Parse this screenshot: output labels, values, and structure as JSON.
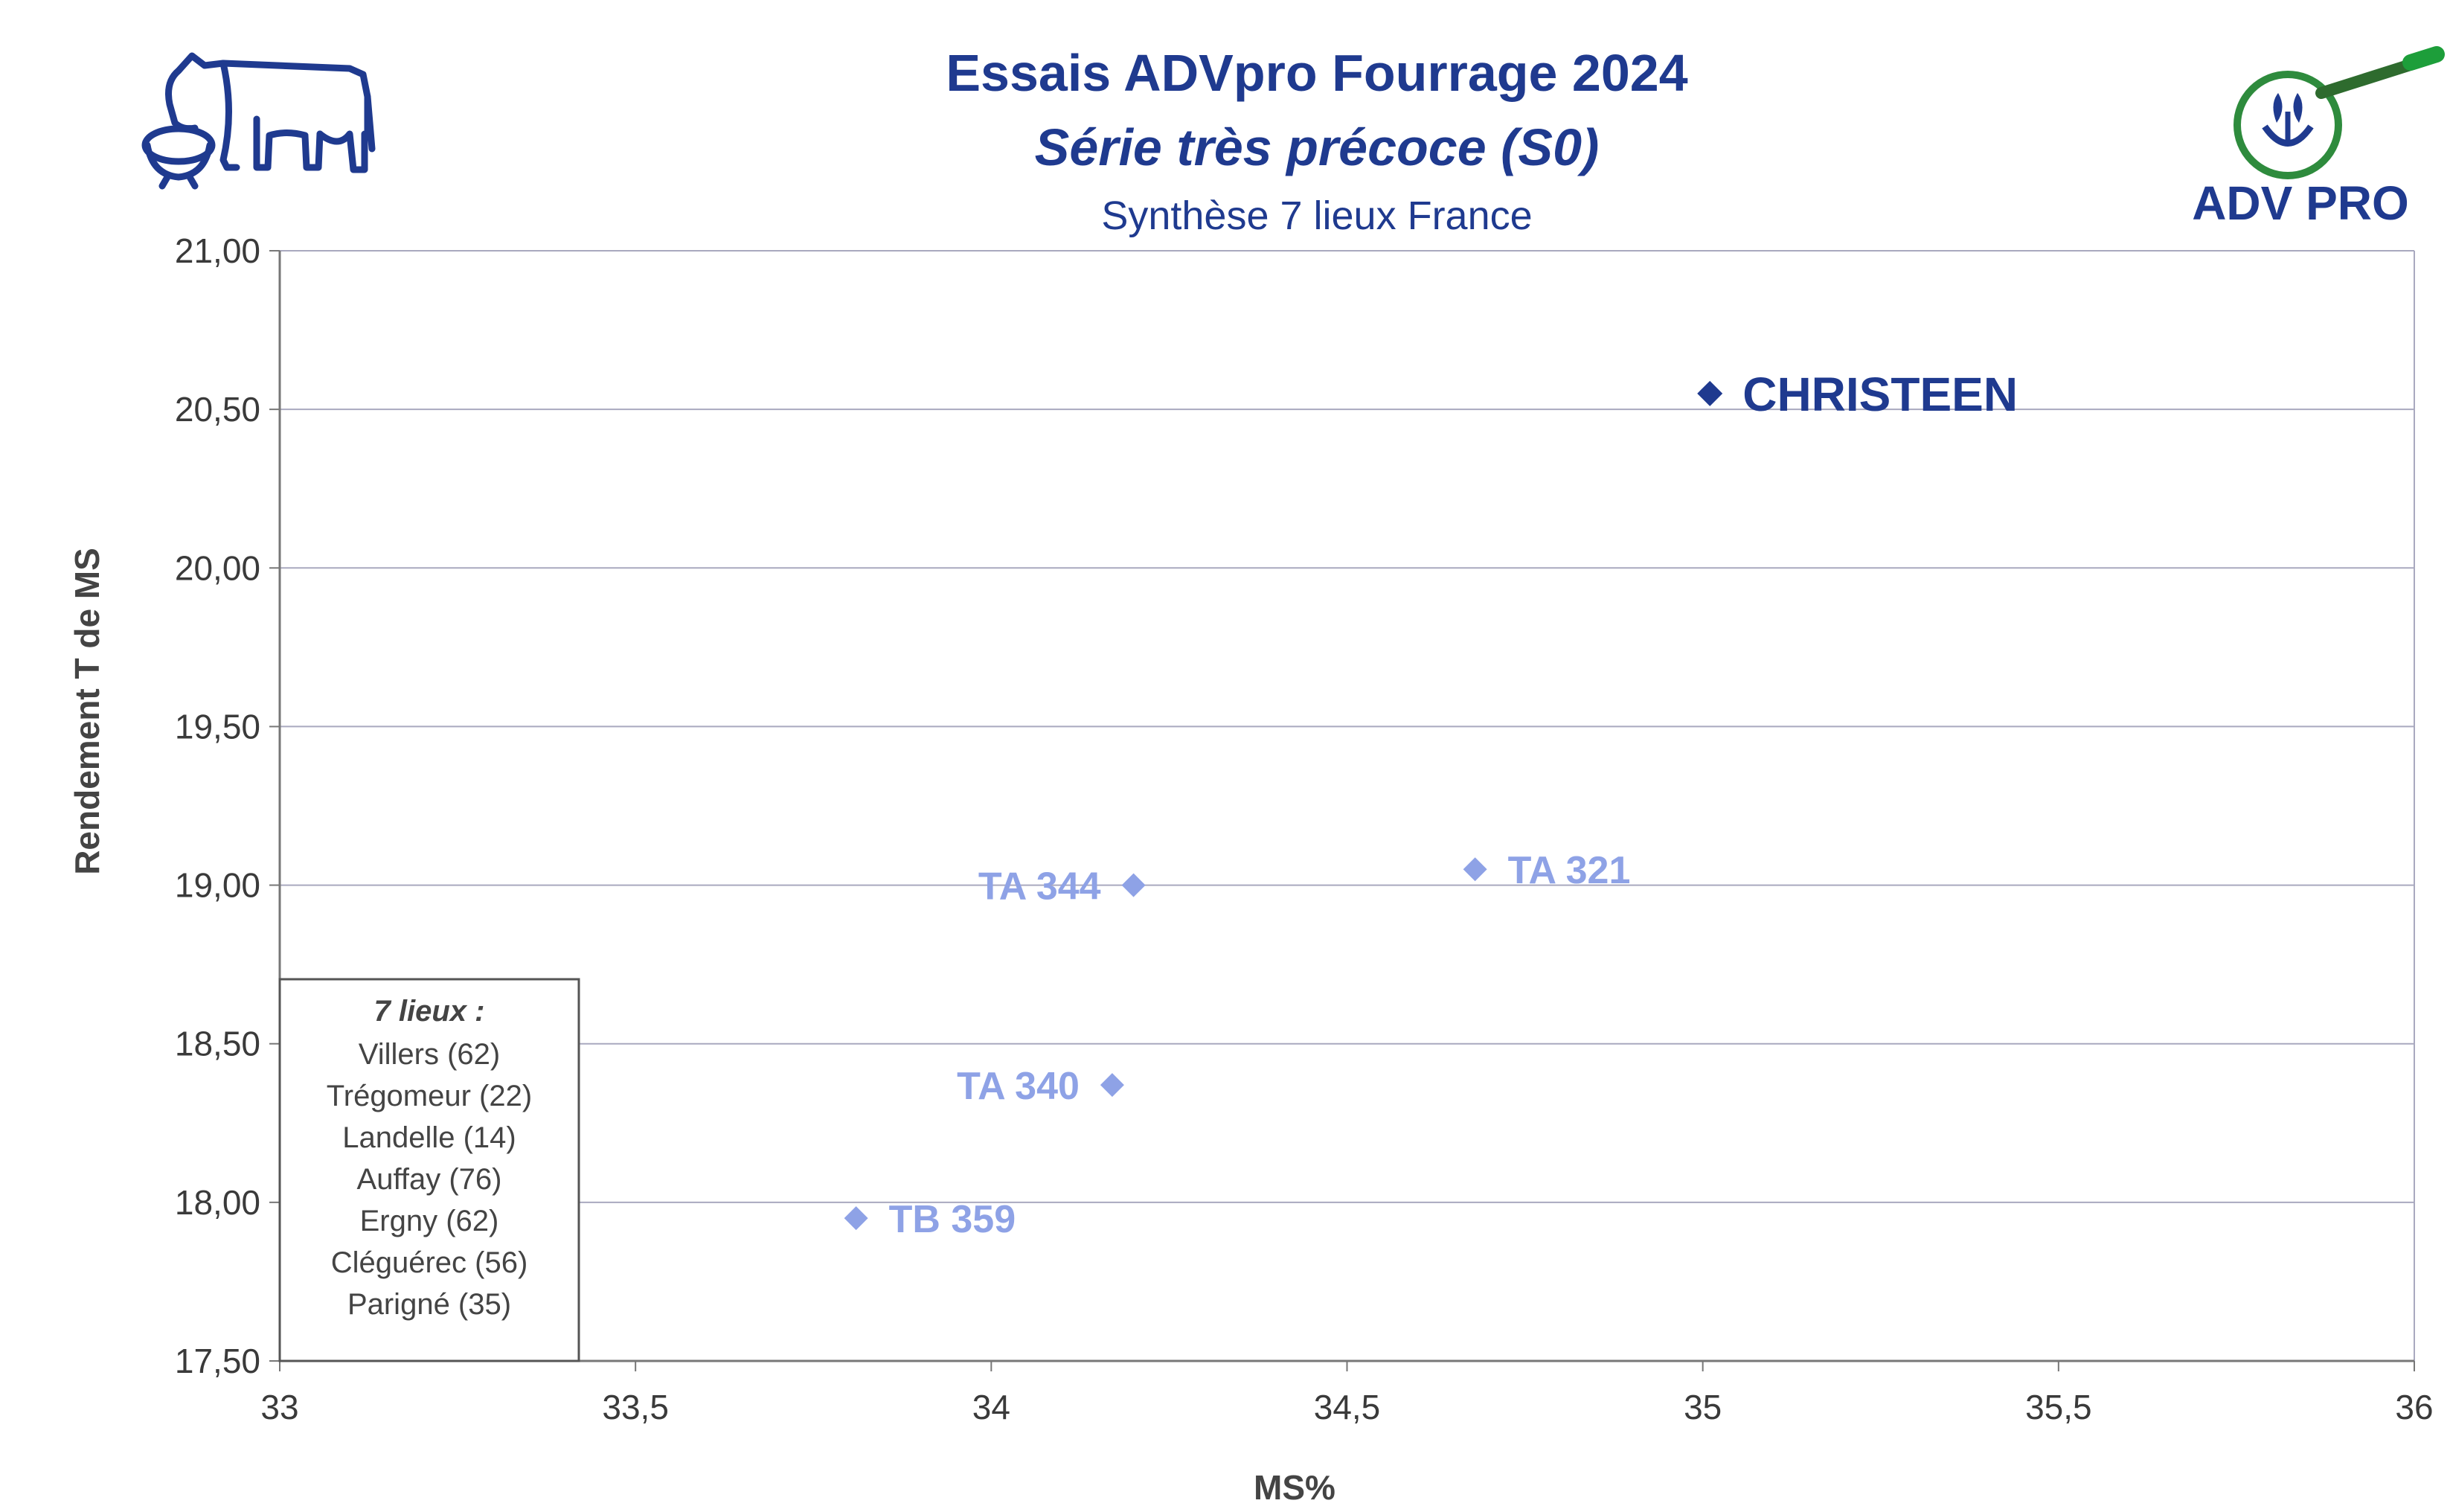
{
  "title": "Essais ADVpro Fourrage 2024",
  "subtitle": "Série très précoce (S0)",
  "subtitle2": "Synthèse 7 lieux France",
  "logo_right_text": "ADV PRO",
  "legend_box": {
    "heading": "7 lieux :",
    "items": [
      "Villers (62)",
      "Trégomeur (22)",
      "Landelle (14)",
      "Auffay (76)",
      "Ergny (62)",
      "Cléguérec (56)",
      "Parigné (35)"
    ]
  },
  "colors": {
    "title": "#1f3a8f",
    "highlight": "#1f3a8f",
    "others": "#8ea2e6",
    "grid": "#a9a9bf",
    "text": "#3a3a3a"
  },
  "chart_data": {
    "type": "scatter",
    "xlabel": "MS%",
    "ylabel": "Rendement T de MS",
    "xlim": [
      33,
      36
    ],
    "ylim": [
      17.5,
      21
    ],
    "x_ticks": [
      "33",
      "33,5",
      "34",
      "34,5",
      "35",
      "35,5",
      "36"
    ],
    "x_tick_values": [
      33,
      33.5,
      34,
      34.5,
      35,
      35.5,
      36
    ],
    "y_ticks": [
      "17,50",
      "18,00",
      "18,50",
      "19,00",
      "19,50",
      "20,00",
      "20,50",
      "21,00"
    ],
    "y_tick_values": [
      17.5,
      18,
      18.5,
      19,
      19.5,
      20,
      20.5,
      21
    ],
    "grid": "horizontal",
    "points": [
      {
        "label": "CHRISTEEN",
        "x": 35.01,
        "y": 20.55,
        "highlight": true,
        "label_side": "right"
      },
      {
        "label": "TA 321",
        "x": 34.68,
        "y": 19.05,
        "highlight": false,
        "label_side": "right"
      },
      {
        "label": "TA 344",
        "x": 34.2,
        "y": 19.0,
        "highlight": false,
        "label_side": "left"
      },
      {
        "label": "TA 340",
        "x": 34.17,
        "y": 18.37,
        "highlight": false,
        "label_side": "left"
      },
      {
        "label": "TB 359",
        "x": 33.81,
        "y": 17.95,
        "highlight": false,
        "label_side": "right"
      }
    ]
  }
}
